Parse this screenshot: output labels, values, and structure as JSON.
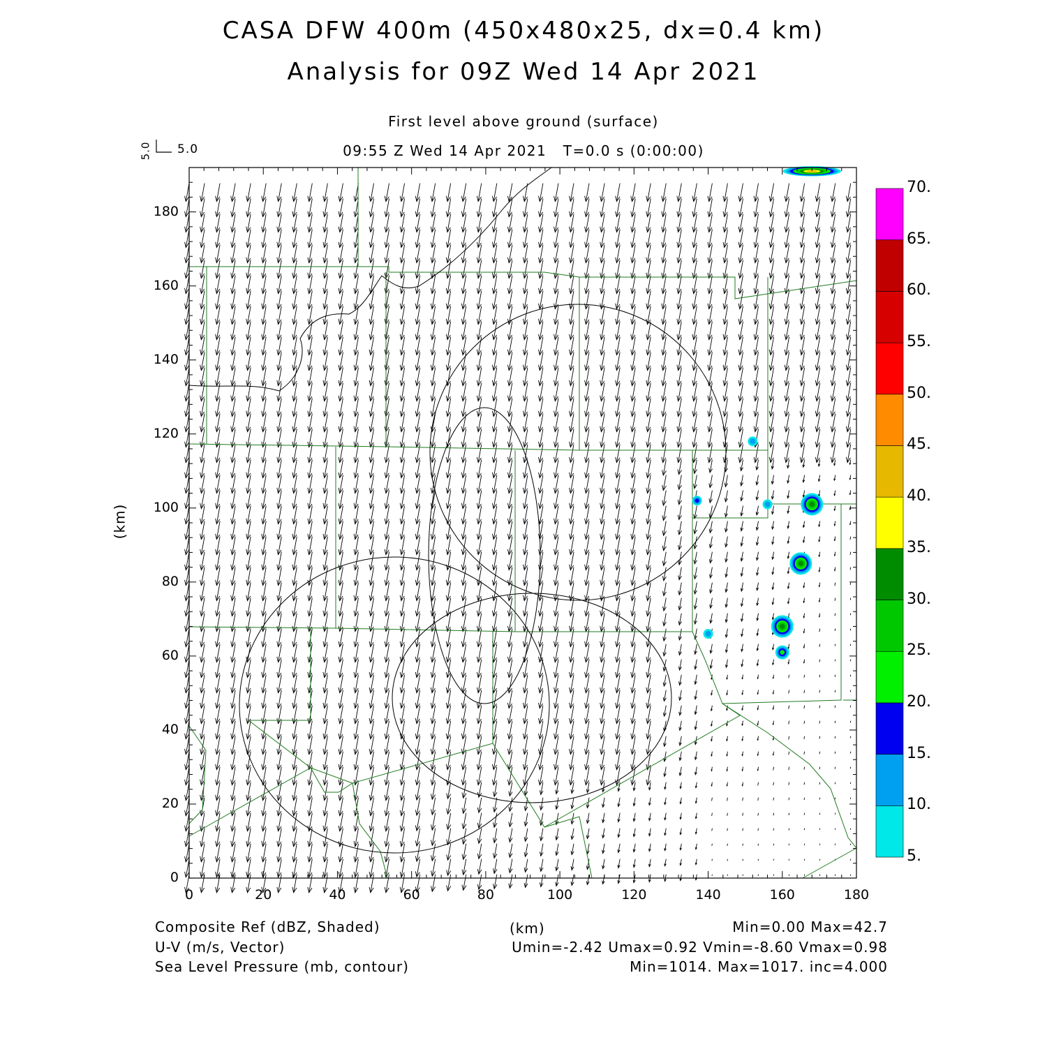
{
  "title": {
    "line1": "CASA DFW 400m (450x480x25, dx=0.4 km)",
    "line2": "Analysis for 09Z Wed 14 Apr 2021"
  },
  "subtitle": {
    "level": "First level above ground (surface)",
    "time": "09:55 Z Wed 14 Apr 2021   T=0.0 s (0:00:00)"
  },
  "vector_key": {
    "value_x": "5.0",
    "value_y": "5.0"
  },
  "axes": {
    "xlabel": "(km)",
    "ylabel": "(km)",
    "xlim": [
      0,
      180
    ],
    "ylim": [
      0,
      192
    ],
    "xticks": [
      "0",
      "20",
      "40",
      "60",
      "80",
      "100",
      "120",
      "140",
      "160",
      "180"
    ],
    "yticks": [
      "0",
      "20",
      "40",
      "60",
      "80",
      "100",
      "120",
      "140",
      "160",
      "180"
    ]
  },
  "colorbar": {
    "labels": [
      "5.",
      "10.",
      "15.",
      "20.",
      "25.",
      "30.",
      "35.",
      "40.",
      "45.",
      "50.",
      "55.",
      "60.",
      "65.",
      "70."
    ],
    "colors": [
      "#00e8e8",
      "#00a0f0",
      "#0000f0",
      "#00f000",
      "#00c800",
      "#008c00",
      "#ffff00",
      "#e6b800",
      "#ff8c00",
      "#ff0000",
      "#d70000",
      "#c00000",
      "#ff00ff"
    ]
  },
  "footer": {
    "left1": "Composite Ref (dBZ, Shaded)",
    "left2": "U-V (m/s, Vector)",
    "left3": "Sea Level Pressure (mb, contour)",
    "center": "(km)",
    "right1": "Min=0.00 Max=42.7",
    "right2": "Umin=-2.42 Umax=0.92 Vmin=-8.60 Vmax=0.98",
    "right3": "Min=1014. Max=1017. inc=4.000"
  },
  "chart_data": {
    "type": "map",
    "fields": [
      "Composite Ref (dBZ, Shaded)",
      "U-V (m/s, Vector)",
      "Sea Level Pressure (mb, contour)"
    ],
    "xlim": [
      0,
      180
    ],
    "ylim": [
      0,
      192
    ],
    "reflectivity_cells_km": [
      {
        "x": 168,
        "y": 191,
        "peak_dbz": 40
      },
      {
        "x": 152,
        "y": 118,
        "peak_dbz": 10
      },
      {
        "x": 137,
        "y": 102,
        "peak_dbz": 17
      },
      {
        "x": 156,
        "y": 101,
        "peak_dbz": 10
      },
      {
        "x": 168,
        "y": 101,
        "peak_dbz": 30
      },
      {
        "x": 165,
        "y": 85,
        "peak_dbz": 30
      },
      {
        "x": 160,
        "y": 68,
        "peak_dbz": 30
      },
      {
        "x": 160,
        "y": 61,
        "peak_dbz": 20
      },
      {
        "x": 140,
        "y": 66,
        "peak_dbz": 10
      }
    ],
    "wind": {
      "umin": -2.42,
      "umax": 0.92,
      "vmin": -8.6,
      "vmax": 0.98,
      "prevailing": "southward, weakening to the southeast"
    },
    "pressure": {
      "min": 1014,
      "max": 1017,
      "inc": 4.0
    }
  }
}
